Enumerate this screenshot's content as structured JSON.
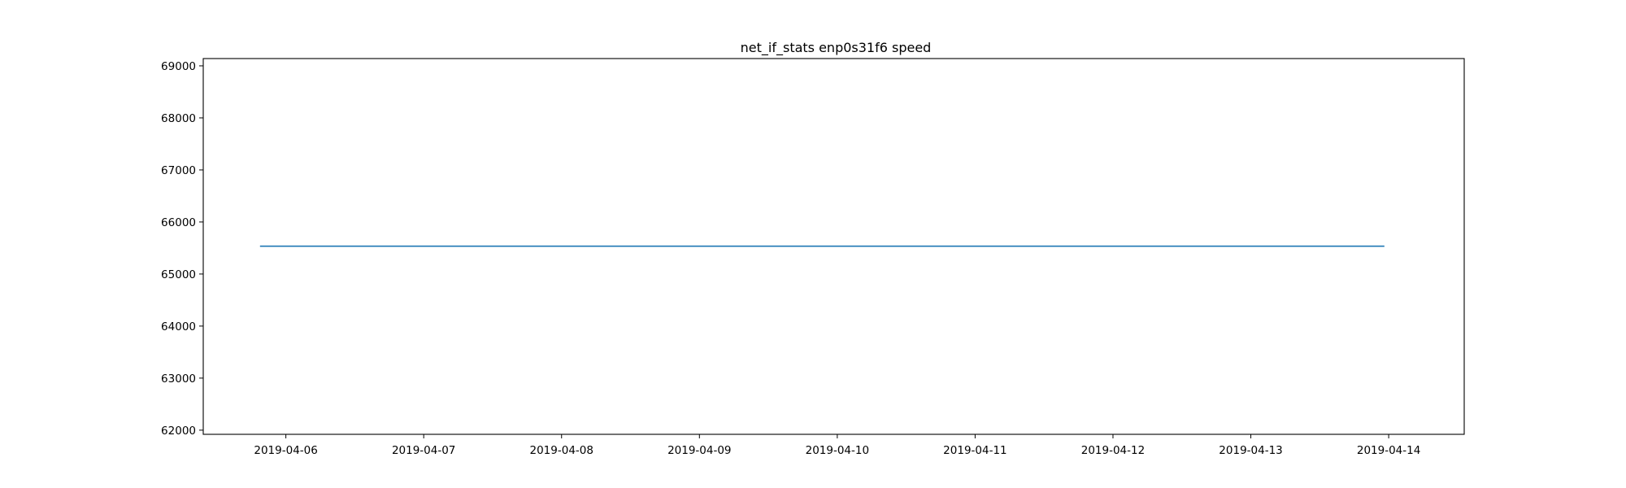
{
  "chart_data": {
    "type": "line",
    "title": "net_if_stats enp0s31f6 speed",
    "xlabel": "",
    "ylabel": "",
    "x_type": "date",
    "xlim": [
      "2019-04-05T09:37",
      "2019-04-14T13:09"
    ],
    "ylim": [
      61920,
      69140
    ],
    "x_ticks": [
      "2019-04-06",
      "2019-04-07",
      "2019-04-08",
      "2019-04-09",
      "2019-04-10",
      "2019-04-11",
      "2019-04-12",
      "2019-04-13",
      "2019-04-14"
    ],
    "y_ticks": [
      62000,
      63000,
      64000,
      65000,
      66000,
      67000,
      68000,
      69000
    ],
    "grid": false,
    "series": [
      {
        "color": "#1f77b4",
        "x": [
          "2019-04-05T19:30",
          "2019-04-13T23:15"
        ],
        "y": [
          65535,
          65535
        ]
      }
    ]
  }
}
